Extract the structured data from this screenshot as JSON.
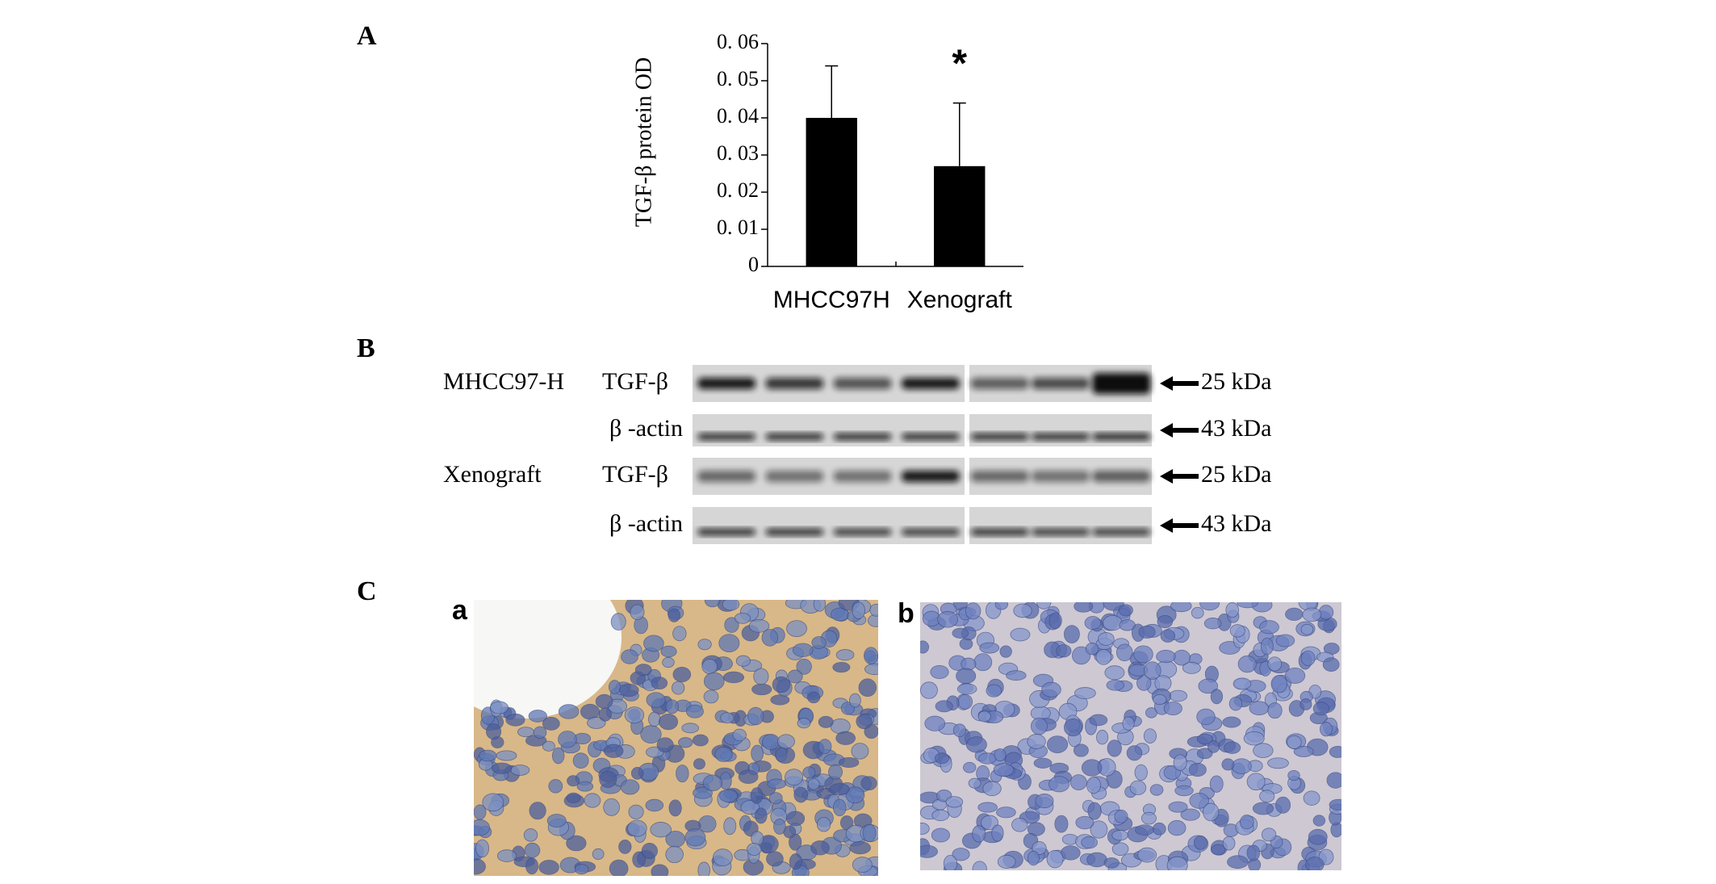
{
  "panel_labels": [
    "A",
    "B",
    "C"
  ],
  "chart_data": {
    "type": "bar",
    "ylabel": "TGF-β protein OD",
    "categories": [
      "MHCC97H",
      "Xenograft"
    ],
    "values": [
      0.04,
      0.027
    ],
    "errors": [
      0.014,
      0.017
    ],
    "color": "#000000",
    "ylim": [
      0,
      0.06
    ],
    "yticks": [
      0,
      {
        "value": 0.01,
        "label": "0. 01"
      },
      {
        "value": 0.02,
        "label": "0. 02"
      },
      {
        "value": 0.03,
        "label": "0. 03"
      },
      {
        "value": 0.04,
        "label": "0. 04"
      },
      {
        "value": 0.05,
        "label": "0. 05"
      },
      {
        "value": 0.06,
        "label": "0. 06"
      }
    ],
    "annotations": [
      "*"
    ]
  },
  "blot": {
    "rows": [
      {
        "group": "MHCC97-H",
        "protein": "TGF-β",
        "size": "25 kDa"
      },
      {
        "protein": "β -actin",
        "size": "43 kDa"
      },
      {
        "group": "Xenograft",
        "protein": "TGF-β",
        "size": "25 kDa"
      },
      {
        "protein": "β -actin",
        "size": "43 kDa"
      }
    ]
  },
  "tissue": {
    "labels": [
      "a",
      "b"
    ]
  }
}
